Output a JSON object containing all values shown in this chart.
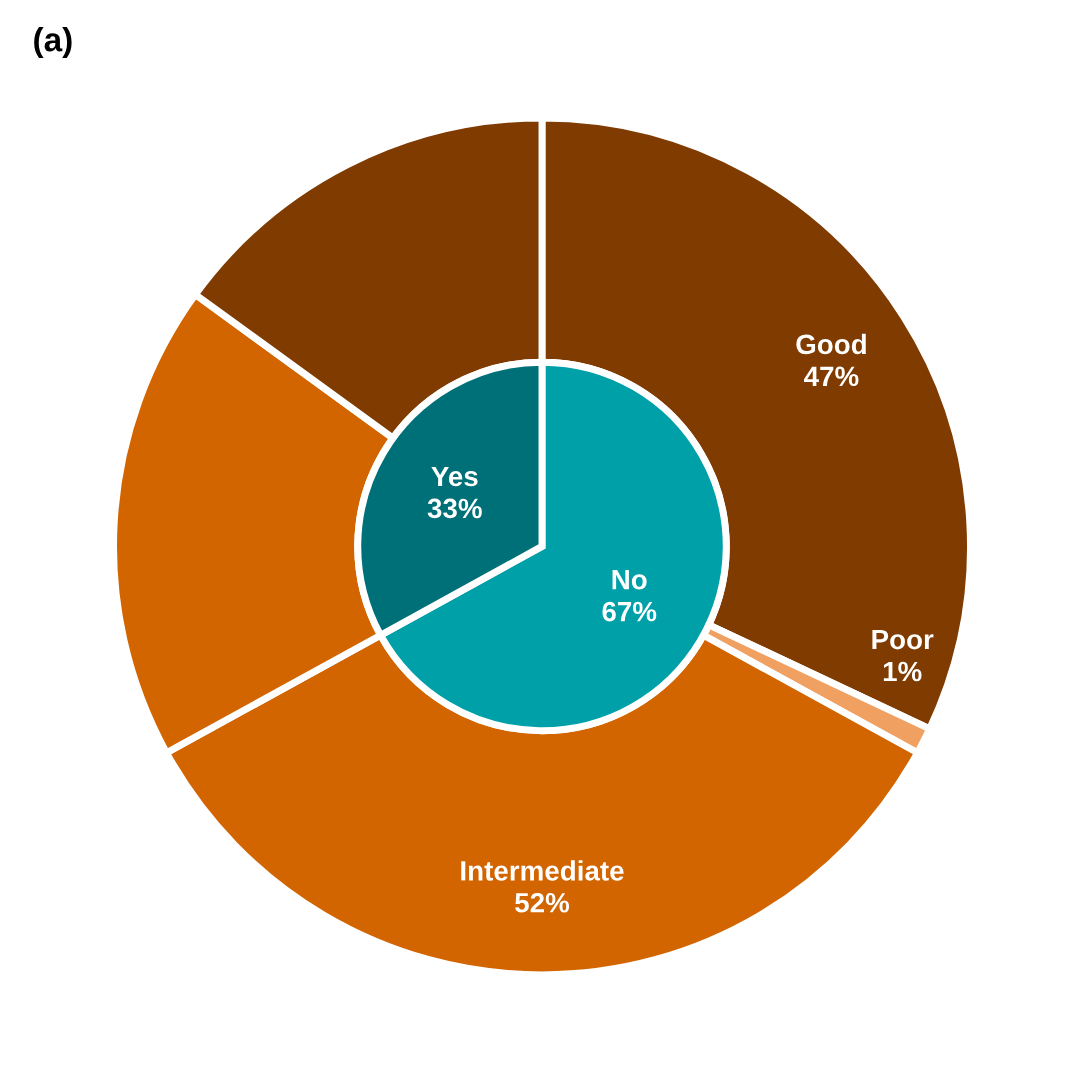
{
  "chart_data": {
    "type": "donut",
    "title": "(a)",
    "series": [
      {
        "type": "pie",
        "values": [
          67,
          33
        ],
        "colors": [
          "#00a0a8",
          "#007078"
        ],
        "value_labels": [
          "No\n67%",
          "Yes\n33%"
        ]
      },
      {
        "values": [
          32,
          1,
          34,
          18,
          15
        ],
        "colors": [
          "#7f3b00",
          "#f0a060",
          "#d26500",
          "#d26500",
          "#7f3b00"
        ]
      }
    ],
    "annotations": [
      "Good\n47%",
      "Poor\n1%",
      "Intermediate\n52%"
    ]
  }
}
